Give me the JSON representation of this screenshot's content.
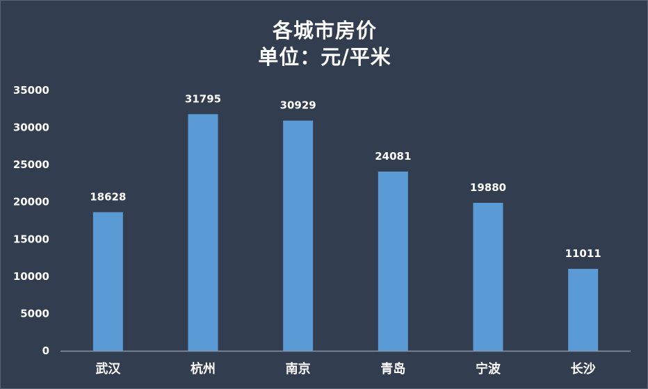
{
  "chart_data": {
    "type": "bar",
    "title": "各城市房价",
    "subtitle": "单位：元/平米",
    "categories": [
      "武汉",
      "杭州",
      "南京",
      "青岛",
      "宁波",
      "长沙"
    ],
    "values": [
      18628,
      31795,
      30929,
      24081,
      19880,
      11011
    ],
    "yticks": [
      "0",
      "5000",
      "10000",
      "15000",
      "20000",
      "25000",
      "30000",
      "35000"
    ],
    "ylim": [
      0,
      35000
    ],
    "grid": false,
    "legend": "none",
    "colors": {
      "background": "#333d50",
      "bar": "#5b9bd5",
      "axis": "#8c96a8",
      "text": "#ffffff"
    }
  }
}
